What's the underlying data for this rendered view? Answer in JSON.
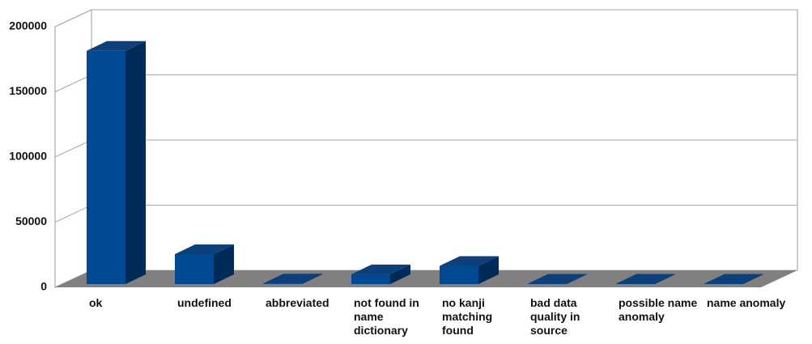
{
  "chart_data": {
    "type": "bar3d",
    "categories": [
      "ok",
      "undefined",
      "abbreviated",
      "not found in name dictionary",
      "no kanji matching found",
      "bad data quality in source",
      "possible name anomaly",
      "name anomaly"
    ],
    "values": [
      179000,
      23000,
      500,
      7500,
      14000,
      300,
      300,
      300
    ],
    "color": "#004a93",
    "ylim": [
      0,
      200000
    ],
    "yticks": [
      0,
      50000,
      100000,
      150000,
      200000
    ],
    "grid": true
  }
}
